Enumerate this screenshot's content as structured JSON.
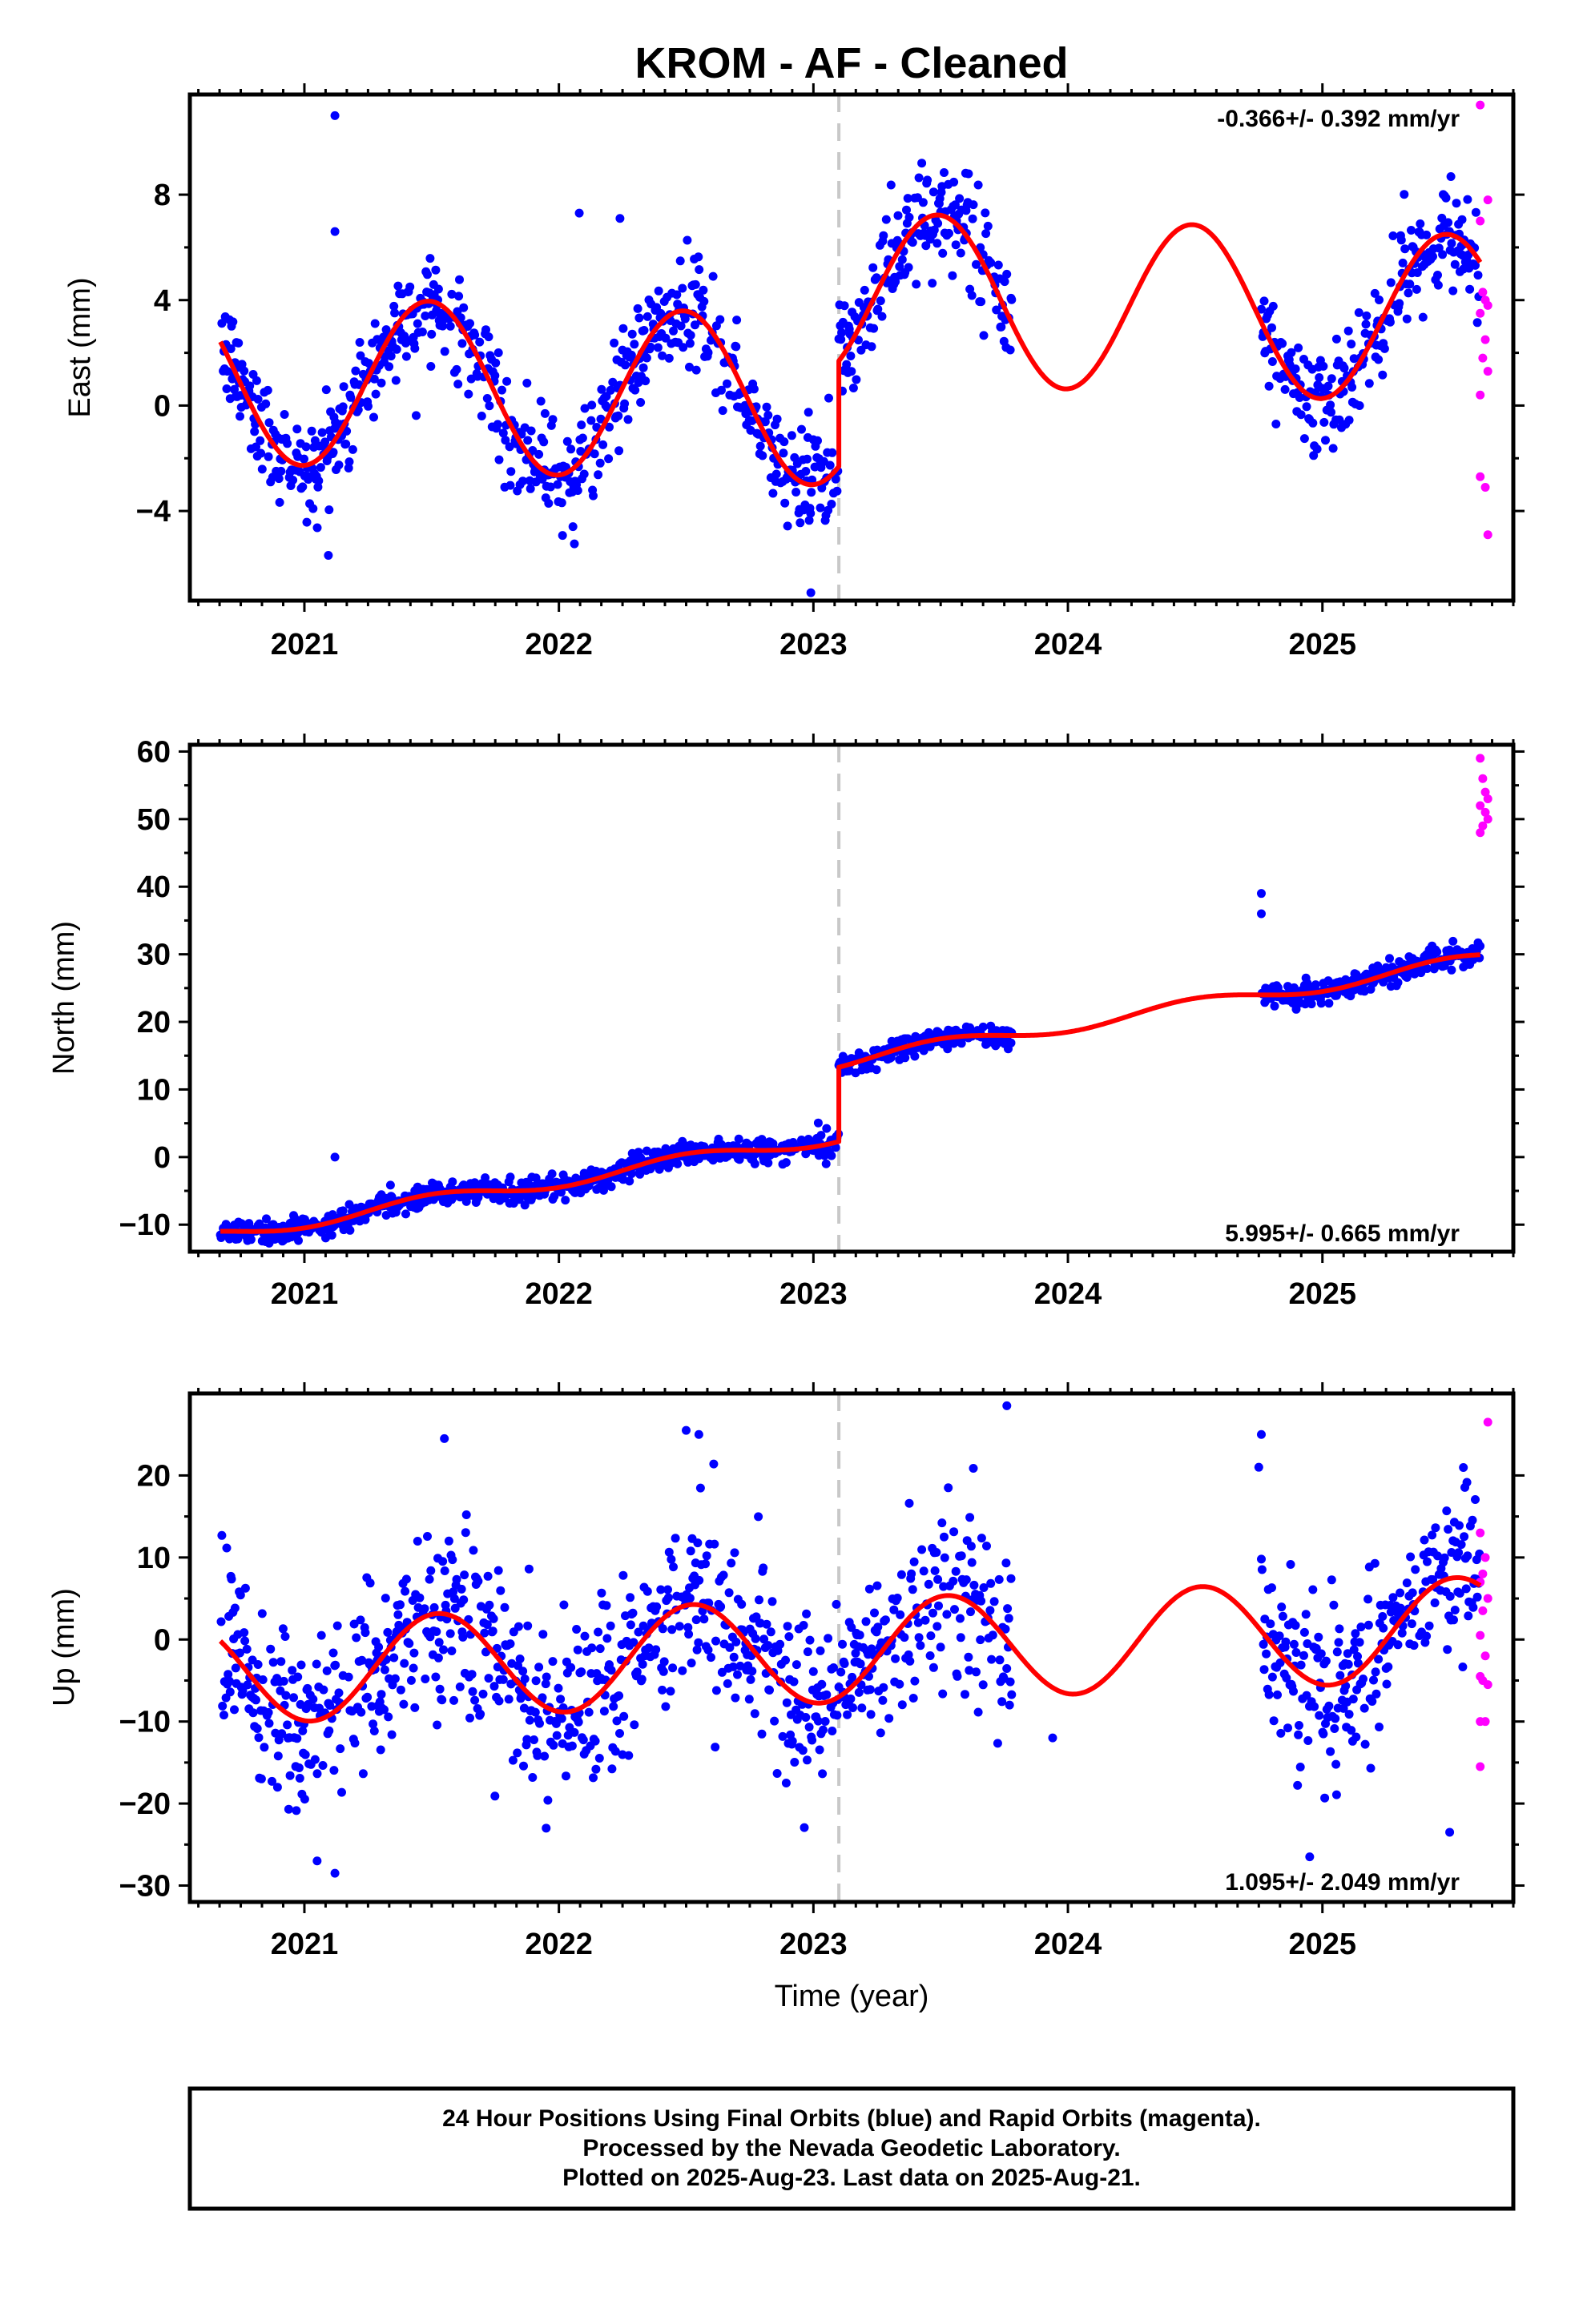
{
  "title": "KROM  - AF - Cleaned",
  "xlabel": "Time (year)",
  "footer": {
    "line1": "24 Hour Positions Using Final Orbits (blue) and Rapid Orbits (magenta).",
    "line2": "Processed by the Nevada Geodetic Laboratory.",
    "line3": "Plotted on 2025-Aug-23. Last data on 2025-Aug-21."
  },
  "colors": {
    "final_orbits": "#0000ff",
    "rapid_orbits": "#ff00ff",
    "model_fit": "#ff0000",
    "offset_line": "#c8c8c8"
  },
  "chart_data": [
    {
      "type": "scatter",
      "ylabel": "East (mm)",
      "rate_label": "-0.366+/- 0.392 mm/yr",
      "xlim": [
        2020.55,
        2025.75
      ],
      "ylim": [
        -7.4,
        11.8
      ],
      "xticks": [
        2021,
        2022,
        2023,
        2024,
        2025
      ],
      "xtick_labels": [
        "2021",
        "2022",
        "2023",
        "2024",
        "2025"
      ],
      "yticks": [
        -4,
        0,
        4,
        8
      ],
      "ytick_labels": [
        "−4",
        "0",
        "4",
        "8"
      ],
      "offset_epoch": 2023.1,
      "final_orbit_segments": [
        [
          2020.67,
          2023.1
        ],
        [
          2023.1,
          2023.78
        ],
        [
          2024.76,
          2025.62
        ]
      ],
      "model": {
        "intercept": 0.2,
        "rate": -0.366,
        "ref_year": 2023.0,
        "annual_sin": 0.2,
        "annual_cos": -3.2,
        "semiannual_sin": 0.0,
        "semiannual_cos": 0.0,
        "offset": 4.0,
        "scatter": 1.0
      },
      "outliers": [
        {
          "x": 2021.12,
          "y": 11.0
        },
        {
          "x": 2021.12,
          "y": 6.6
        },
        {
          "x": 2022.08,
          "y": 7.3
        },
        {
          "x": 2022.24,
          "y": 7.1
        },
        {
          "x": 2023.6,
          "y": 7.4
        },
        {
          "x": 2022.99,
          "y": -7.1
        }
      ],
      "rapid_orbits": [
        {
          "x": 2025.62,
          "y": 11.4
        },
        {
          "x": 2025.65,
          "y": 7.8
        },
        {
          "x": 2025.62,
          "y": 7.0
        },
        {
          "x": 2025.63,
          "y": 4.3
        },
        {
          "x": 2025.64,
          "y": 4.0
        },
        {
          "x": 2025.65,
          "y": 3.8
        },
        {
          "x": 2025.62,
          "y": 3.5
        },
        {
          "x": 2025.64,
          "y": 2.5
        },
        {
          "x": 2025.63,
          "y": 1.8
        },
        {
          "x": 2025.65,
          "y": 1.3
        },
        {
          "x": 2025.62,
          "y": 0.4
        },
        {
          "x": 2025.62,
          "y": -2.7
        },
        {
          "x": 2025.64,
          "y": -3.1
        },
        {
          "x": 2025.65,
          "y": -4.9
        }
      ]
    },
    {
      "type": "scatter",
      "ylabel": "North (mm)",
      "rate_label": "5.995+/- 0.665 mm/yr",
      "xlim": [
        2020.55,
        2025.75
      ],
      "ylim": [
        -14,
        61
      ],
      "xticks": [
        2021,
        2022,
        2023,
        2024,
        2025
      ],
      "xtick_labels": [
        "2021",
        "2022",
        "2023",
        "2024",
        "2025"
      ],
      "yticks": [
        -10,
        0,
        10,
        20,
        30,
        40,
        50,
        60
      ],
      "ytick_labels": [
        "−10",
        "0",
        "10",
        "20",
        "30",
        "40",
        "50",
        "60"
      ],
      "offset_epoch": 2023.1,
      "final_orbit_segments": [
        [
          2020.67,
          2023.1
        ],
        [
          2023.1,
          2023.78
        ],
        [
          2024.76,
          2025.62
        ]
      ],
      "model": {
        "intercept": 2.5,
        "rate": 5.995,
        "ref_year": 2023.0,
        "annual_sin": 0.0,
        "annual_cos": -1.0,
        "semiannual_sin": 0.0,
        "semiannual_cos": 0.0,
        "offset": 11.0,
        "scatter": 0.9
      },
      "outliers": [
        {
          "x": 2021.12,
          "y": 0.0
        },
        {
          "x": 2023.05,
          "y": -1.0
        },
        {
          "x": 2024.76,
          "y": 36.0
        },
        {
          "x": 2024.76,
          "y": 39.0
        }
      ],
      "rapid_orbits": [
        {
          "x": 2025.62,
          "y": 59.0
        },
        {
          "x": 2025.63,
          "y": 56.0
        },
        {
          "x": 2025.64,
          "y": 54.0
        },
        {
          "x": 2025.65,
          "y": 53.0
        },
        {
          "x": 2025.62,
          "y": 52.0
        },
        {
          "x": 2025.64,
          "y": 51.0
        },
        {
          "x": 2025.65,
          "y": 50.0
        },
        {
          "x": 2025.63,
          "y": 49.0
        },
        {
          "x": 2025.62,
          "y": 48.0
        }
      ]
    },
    {
      "type": "scatter",
      "ylabel": "Up (mm)",
      "rate_label": "1.095+/- 2.049 mm/yr",
      "xlim": [
        2020.55,
        2025.75
      ],
      "ylim": [
        -32,
        30
      ],
      "xticks": [
        2021,
        2022,
        2023,
        2024,
        2025
      ],
      "xtick_labels": [
        "2021",
        "2022",
        "2023",
        "2024",
        "2025"
      ],
      "yticks": [
        -30,
        -20,
        -10,
        0,
        10,
        20
      ],
      "ytick_labels": [
        "−30",
        "−20",
        "−10",
        "0",
        "10",
        "20"
      ],
      "offset_epoch": 2023.1,
      "final_orbit_segments": [
        [
          2020.67,
          2023.1
        ],
        [
          2023.1,
          2023.78
        ],
        [
          2024.76,
          2025.62
        ]
      ],
      "model": {
        "intercept": -1.5,
        "rate": 1.095,
        "ref_year": 2023.0,
        "annual_sin": -1.0,
        "annual_cos": -6.2,
        "semiannual_sin": 0.0,
        "semiannual_cos": 0.0,
        "offset": 0.0,
        "scatter": 5.5
      },
      "outliers": [
        {
          "x": 2021.05,
          "y": -27.0
        },
        {
          "x": 2021.12,
          "y": -28.5
        },
        {
          "x": 2021.55,
          "y": 24.5
        },
        {
          "x": 2022.5,
          "y": 25.5
        },
        {
          "x": 2022.55,
          "y": 25.0
        },
        {
          "x": 2023.76,
          "y": 28.5
        },
        {
          "x": 2024.76,
          "y": 25.0
        },
        {
          "x": 2024.75,
          "y": 21.0
        },
        {
          "x": 2023.94,
          "y": -12.0
        },
        {
          "x": 2024.95,
          "y": -26.5
        },
        {
          "x": 2025.5,
          "y": -23.5
        },
        {
          "x": 2021.95,
          "y": -23.0
        }
      ],
      "rapid_orbits": [
        {
          "x": 2025.65,
          "y": 26.5
        },
        {
          "x": 2025.62,
          "y": 13.0
        },
        {
          "x": 2025.64,
          "y": 10.0
        },
        {
          "x": 2025.63,
          "y": 8.0
        },
        {
          "x": 2025.62,
          "y": 7.0
        },
        {
          "x": 2025.65,
          "y": 5.0
        },
        {
          "x": 2025.63,
          "y": 3.5
        },
        {
          "x": 2025.62,
          "y": 0.5
        },
        {
          "x": 2025.64,
          "y": -2.0
        },
        {
          "x": 2025.62,
          "y": -4.5
        },
        {
          "x": 2025.63,
          "y": -5.0
        },
        {
          "x": 2025.65,
          "y": -5.5
        },
        {
          "x": 2025.64,
          "y": -10.0
        },
        {
          "x": 2025.62,
          "y": -10.0
        },
        {
          "x": 2025.62,
          "y": -15.5
        }
      ]
    }
  ]
}
